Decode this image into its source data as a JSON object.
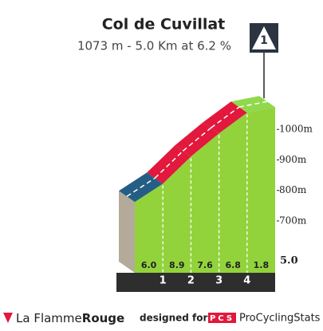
{
  "chart_data": {
    "type": "climb-profile",
    "title": "Col de Cuvillat",
    "subtitle": "1073 m - 5.0 Km at 6.2 %",
    "category": "1",
    "x": [
      0,
      1,
      2,
      3,
      4,
      5
    ],
    "elevation": [
      762,
      822,
      911,
      987,
      1055,
      1073
    ],
    "segments": {
      "values": [
        6.0,
        8.9,
        7.6,
        6.8,
        1.8
      ],
      "value_labels": [
        "6.0",
        "8.9",
        "7.6",
        "6.8",
        "1.8"
      ],
      "colors": [
        "#255e85",
        "#e2183d",
        "#e2183d",
        "#e2183d",
        "#8fd94a"
      ]
    },
    "face_color": "#92d33c",
    "side_color": "#b3aa9a",
    "xlim": [
      0,
      5
    ],
    "xticks": [
      1,
      2,
      3,
      4
    ],
    "total_label": "5.0",
    "ylim": [
      530,
      1100
    ],
    "yticks": [
      {
        "value": 700,
        "label": "700m"
      },
      {
        "value": 800,
        "label": "800m"
      },
      {
        "value": 900,
        "label": "900m"
      },
      {
        "value": 1000,
        "label": "1000m"
      }
    ]
  },
  "footer": {
    "brand_a": "La Flamme",
    "brand_b": "Rouge",
    "designed_for": "designed for",
    "badge": "PCS",
    "site": "ProCyclingStats"
  }
}
